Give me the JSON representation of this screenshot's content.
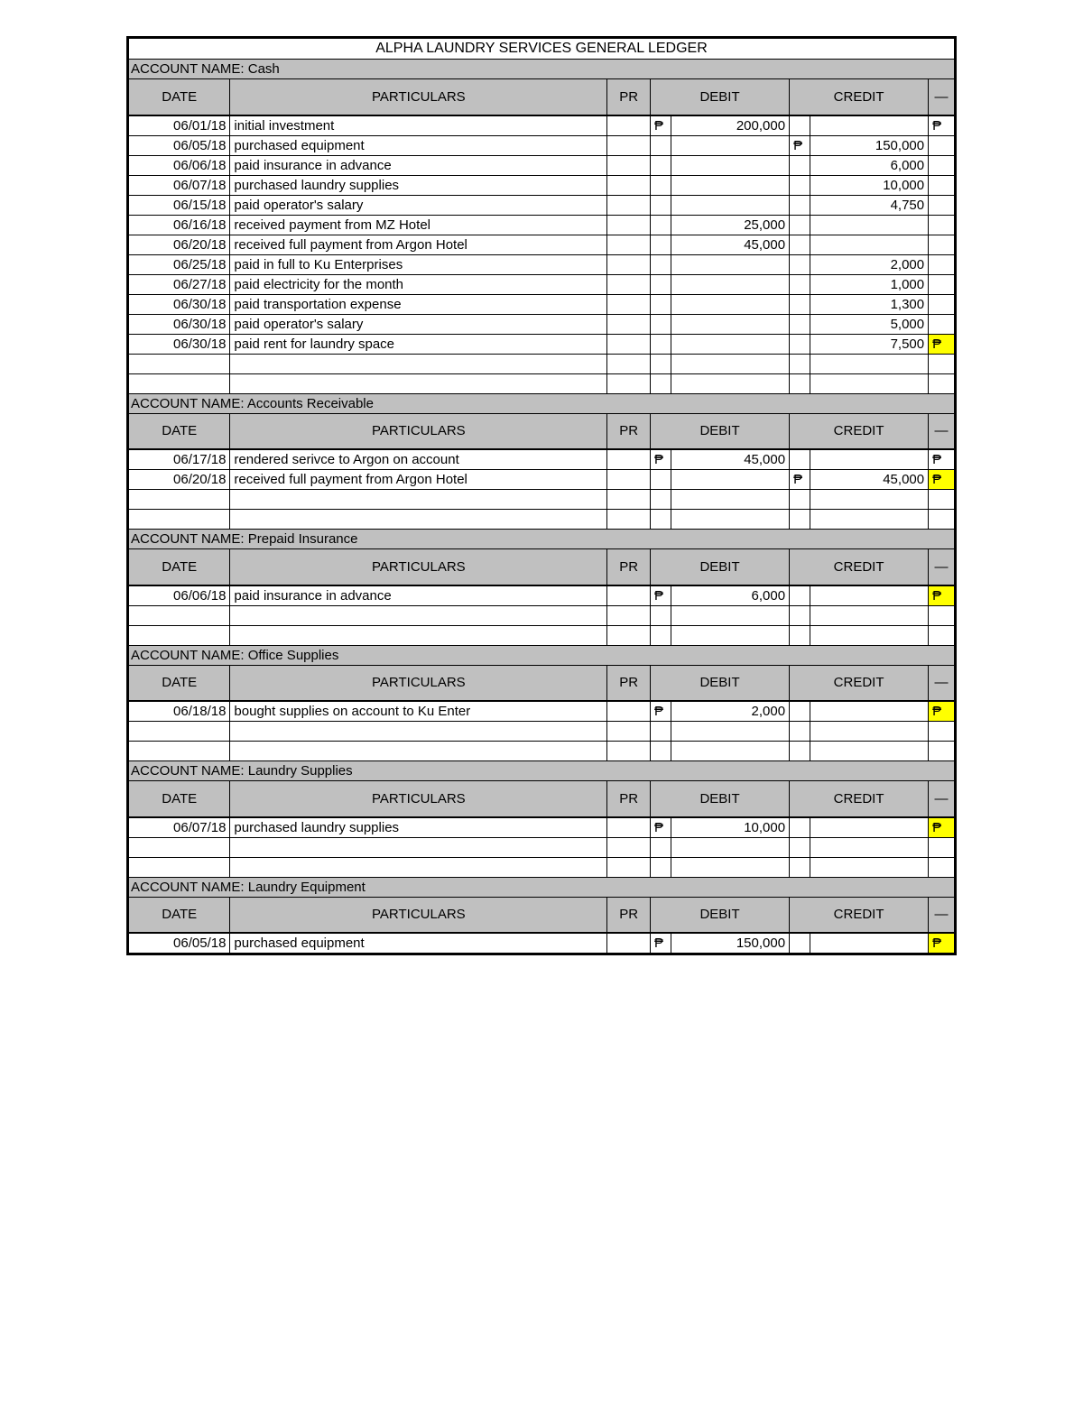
{
  "title": "ALPHA LAUNDRY SERVICES GENERAL LEDGER",
  "currency_symbol": "₱",
  "columns": {
    "date": "DATE",
    "particulars": "PARTICULARS",
    "pr": "PR",
    "debit": "DEBIT",
    "credit": "CREDIT"
  },
  "colors": {
    "header_bg": "#c0c0c0",
    "highlight": "#ffff00",
    "border": "#000000",
    "bg": "#ffffff"
  },
  "accounts": [
    {
      "name": "Cash",
      "rows": [
        {
          "date": "06/01/18",
          "part": "initial investment",
          "debit_sym": "₱",
          "debit": "200,000",
          "credit_sym": "",
          "credit": "",
          "tail_sym": "₱",
          "tail_hl": false
        },
        {
          "date": "06/05/18",
          "part": "purchased equipment",
          "debit_sym": "",
          "debit": "",
          "credit_sym": "₱",
          "credit": "150,000",
          "tail_sym": "",
          "tail_hl": false
        },
        {
          "date": "06/06/18",
          "part": "paid insurance in advance",
          "debit_sym": "",
          "debit": "",
          "credit_sym": "",
          "credit": "6,000",
          "tail_sym": "",
          "tail_hl": false
        },
        {
          "date": "06/07/18",
          "part": "purchased laundry supplies",
          "debit_sym": "",
          "debit": "",
          "credit_sym": "",
          "credit": "10,000",
          "tail_sym": "",
          "tail_hl": false
        },
        {
          "date": "06/15/18",
          "part": "paid operator's salary",
          "debit_sym": "",
          "debit": "",
          "credit_sym": "",
          "credit": "4,750",
          "tail_sym": "",
          "tail_hl": false
        },
        {
          "date": "06/16/18",
          "part": "received payment from MZ Hotel",
          "debit_sym": "",
          "debit": "25,000",
          "credit_sym": "",
          "credit": "",
          "tail_sym": "",
          "tail_hl": false
        },
        {
          "date": "06/20/18",
          "part": "received full payment from Argon Hotel",
          "debit_sym": "",
          "debit": "45,000",
          "credit_sym": "",
          "credit": "",
          "tail_sym": "",
          "tail_hl": false
        },
        {
          "date": "06/25/18",
          "part": "paid in full to Ku Enterprises",
          "debit_sym": "",
          "debit": "",
          "credit_sym": "",
          "credit": "2,000",
          "tail_sym": "",
          "tail_hl": false
        },
        {
          "date": "06/27/18",
          "part": "paid electricity for the month",
          "debit_sym": "",
          "debit": "",
          "credit_sym": "",
          "credit": "1,000",
          "tail_sym": "",
          "tail_hl": false
        },
        {
          "date": "06/30/18",
          "part": "paid transportation expense",
          "debit_sym": "",
          "debit": "",
          "credit_sym": "",
          "credit": "1,300",
          "tail_sym": "",
          "tail_hl": false
        },
        {
          "date": "06/30/18",
          "part": "paid operator's salary",
          "debit_sym": "",
          "debit": "",
          "credit_sym": "",
          "credit": "5,000",
          "tail_sym": "",
          "tail_hl": false
        },
        {
          "date": "06/30/18",
          "part": "paid rent for laundry space",
          "debit_sym": "",
          "debit": "",
          "credit_sym": "",
          "credit": "7,500",
          "tail_sym": "₱",
          "tail_hl": true
        }
      ],
      "blank_rows": 2
    },
    {
      "name": "Accounts Receivable",
      "rows": [
        {
          "date": "06/17/18",
          "part": "rendered serivce to Argon on account",
          "debit_sym": "₱",
          "debit": "45,000",
          "credit_sym": "",
          "credit": "",
          "tail_sym": "₱",
          "tail_hl": false
        },
        {
          "date": "06/20/18",
          "part": "received full payment from Argon Hotel",
          "debit_sym": "",
          "debit": "",
          "credit_sym": "₱",
          "credit": "45,000",
          "tail_sym": "₱",
          "tail_hl": true
        }
      ],
      "blank_rows": 2
    },
    {
      "name": "Prepaid Insurance",
      "rows": [
        {
          "date": "06/06/18",
          "part": "paid insurance in advance",
          "debit_sym": "₱",
          "debit": "6,000",
          "credit_sym": "",
          "credit": "",
          "tail_sym": "₱",
          "tail_hl": true
        }
      ],
      "blank_rows": 2
    },
    {
      "name": "Office Supplies",
      "rows": [
        {
          "date": "06/18/18",
          "part": "bought supplies on account to Ku Enter",
          "debit_sym": "₱",
          "debit": "2,000",
          "credit_sym": "",
          "credit": "",
          "tail_sym": "₱",
          "tail_hl": true
        }
      ],
      "blank_rows": 2
    },
    {
      "name": "Laundry Supplies",
      "rows": [
        {
          "date": "06/07/18",
          "part": "purchased laundry supplies",
          "debit_sym": "₱",
          "debit": "10,000",
          "credit_sym": "",
          "credit": "",
          "tail_sym": "₱",
          "tail_hl": true
        }
      ],
      "blank_rows": 2
    },
    {
      "name": "Laundry Equipment",
      "rows": [
        {
          "date": "06/05/18",
          "part": "purchased equipment",
          "debit_sym": "₱",
          "debit": "150,000",
          "credit_sym": "",
          "credit": "",
          "tail_sym": "₱",
          "tail_hl": true
        }
      ],
      "blank_rows": 0
    }
  ]
}
